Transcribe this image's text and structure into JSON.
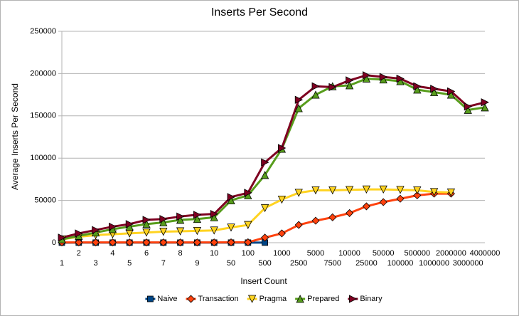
{
  "chart_data": {
    "type": "line",
    "title": "Inserts Per Second",
    "x_label": "Insert Count",
    "y_label": "Average Inserts Per Second",
    "categories": [
      "1",
      "2",
      "3",
      "4",
      "5",
      "6",
      "7",
      "8",
      "9",
      "10",
      "50",
      "100",
      "500",
      "1000",
      "2500",
      "5000",
      "7500",
      "10000",
      "25000",
      "50000",
      "100000",
      "500000",
      "1000000",
      "2000000",
      "3000000",
      "4000000"
    ],
    "ylim": [
      0,
      250000
    ],
    "yticks": [
      0,
      50000,
      100000,
      150000,
      200000,
      250000
    ],
    "grid": true,
    "legend": "bottom",
    "series": [
      {
        "name": "Naive",
        "color": "#004586",
        "marker": "square",
        "values": [
          50,
          60,
          70,
          70,
          80,
          80,
          80,
          80,
          90,
          90,
          100,
          100,
          100,
          null,
          null,
          null,
          null,
          null,
          null,
          null,
          null,
          null,
          null,
          null,
          null,
          null
        ]
      },
      {
        "name": "Transaction",
        "color": "#ff420e",
        "marker": "diamond",
        "values": [
          300,
          300,
          300,
          300,
          300,
          300,
          300,
          300,
          300,
          300,
          400,
          500,
          6000,
          11000,
          21000,
          26000,
          30000,
          35000,
          43000,
          48000,
          52000,
          56000,
          58000,
          58000,
          null,
          null
        ]
      },
      {
        "name": "Pragma",
        "color": "#ffd320",
        "marker": "down",
        "values": [
          4000,
          7000,
          9000,
          10000,
          11000,
          12000,
          13000,
          13500,
          14000,
          14500,
          18000,
          21000,
          41000,
          51000,
          59000,
          62000,
          62000,
          62500,
          63000,
          63000,
          62500,
          62000,
          60000,
          59500,
          null,
          null
        ]
      },
      {
        "name": "Prepared",
        "color": "#579d1c",
        "marker": "up",
        "values": [
          4000,
          8000,
          12000,
          16000,
          19000,
          22000,
          24000,
          27000,
          28000,
          30000,
          50000,
          56000,
          80000,
          111000,
          159000,
          175000,
          185000,
          186000,
          194000,
          193000,
          191000,
          181000,
          178000,
          175000,
          157000,
          160000
        ]
      },
      {
        "name": "Binary",
        "color": "#7e0021",
        "marker": "right",
        "values": [
          6000,
          11000,
          15000,
          19000,
          22000,
          27000,
          28000,
          31000,
          33000,
          34000,
          54000,
          59000,
          95000,
          112000,
          169000,
          185000,
          184000,
          192000,
          198000,
          196000,
          194000,
          185000,
          182000,
          179000,
          161000,
          166000
        ]
      }
    ]
  }
}
